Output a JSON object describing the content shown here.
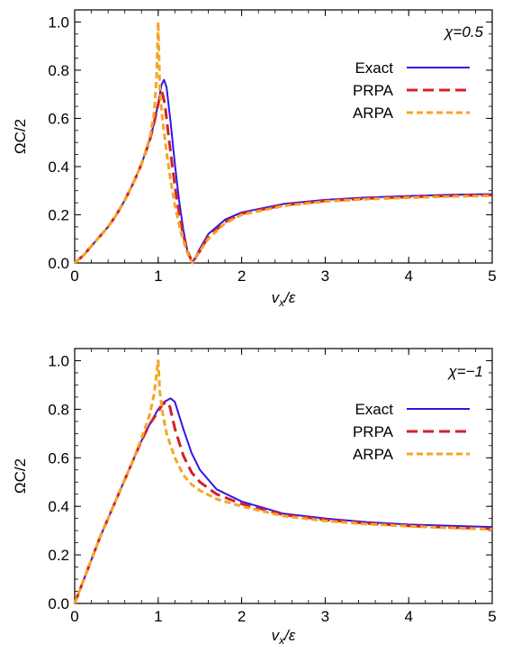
{
  "chart_data": [
    {
      "type": "line",
      "panel": "top",
      "annotation": "χ=0.5",
      "xlabel": "vx/ε",
      "xlabel_main": "v",
      "xlabel_sub": "x",
      "xlabel_tail": "/ε",
      "ylabel": "ΩC/2",
      "xlim": [
        0,
        5
      ],
      "ylim": [
        0,
        1.05
      ],
      "xticks": [
        "0",
        "1",
        "2",
        "3",
        "4",
        "5"
      ],
      "yticks": [
        "0.0",
        "0.2",
        "0.4",
        "0.6",
        "0.8",
        "1.0"
      ],
      "grid": false,
      "legend_position": "top-right",
      "series": [
        {
          "name": "Exact",
          "color": "#2d18e8",
          "style": "solid",
          "points": [
            [
              0,
              0
            ],
            [
              0.1,
              0.03
            ],
            [
              0.2,
              0.07
            ],
            [
              0.3,
              0.11
            ],
            [
              0.4,
              0.15
            ],
            [
              0.5,
              0.2
            ],
            [
              0.6,
              0.26
            ],
            [
              0.7,
              0.33
            ],
            [
              0.8,
              0.41
            ],
            [
              0.9,
              0.51
            ],
            [
              0.95,
              0.58
            ],
            [
              1.0,
              0.66
            ],
            [
              1.04,
              0.74
            ],
            [
              1.07,
              0.76
            ],
            [
              1.1,
              0.73
            ],
            [
              1.15,
              0.58
            ],
            [
              1.2,
              0.41
            ],
            [
              1.25,
              0.26
            ],
            [
              1.3,
              0.14
            ],
            [
              1.35,
              0.05
            ],
            [
              1.41,
              0.0
            ],
            [
              1.5,
              0.06
            ],
            [
              1.6,
              0.12
            ],
            [
              1.8,
              0.18
            ],
            [
              2.0,
              0.21
            ],
            [
              2.5,
              0.245
            ],
            [
              3.0,
              0.262
            ],
            [
              3.5,
              0.272
            ],
            [
              4.0,
              0.278
            ],
            [
              4.5,
              0.283
            ],
            [
              5.0,
              0.286
            ]
          ]
        },
        {
          "name": "PRPA",
          "color": "#d4202c",
          "style": "dashed",
          "points": [
            [
              0,
              0
            ],
            [
              0.1,
              0.03
            ],
            [
              0.2,
              0.07
            ],
            [
              0.3,
              0.11
            ],
            [
              0.4,
              0.15
            ],
            [
              0.5,
              0.2
            ],
            [
              0.6,
              0.26
            ],
            [
              0.7,
              0.33
            ],
            [
              0.8,
              0.41
            ],
            [
              0.9,
              0.51
            ],
            [
              0.95,
              0.58
            ],
            [
              1.0,
              0.66
            ],
            [
              1.03,
              0.7
            ],
            [
              1.05,
              0.705
            ],
            [
              1.08,
              0.66
            ],
            [
              1.12,
              0.54
            ],
            [
              1.17,
              0.4
            ],
            [
              1.22,
              0.27
            ],
            [
              1.28,
              0.15
            ],
            [
              1.34,
              0.06
            ],
            [
              1.41,
              0.0
            ],
            [
              1.5,
              0.05
            ],
            [
              1.6,
              0.11
            ],
            [
              1.8,
              0.17
            ],
            [
              2.0,
              0.205
            ],
            [
              2.5,
              0.24
            ],
            [
              3.0,
              0.258
            ],
            [
              3.5,
              0.268
            ],
            [
              4.0,
              0.274
            ],
            [
              4.5,
              0.279
            ],
            [
              5.0,
              0.282
            ]
          ]
        },
        {
          "name": "ARPA",
          "color": "#f5a623",
          "style": "dashed",
          "points": [
            [
              0,
              0
            ],
            [
              0.1,
              0.03
            ],
            [
              0.2,
              0.07
            ],
            [
              0.3,
              0.11
            ],
            [
              0.4,
              0.15
            ],
            [
              0.5,
              0.2
            ],
            [
              0.6,
              0.26
            ],
            [
              0.7,
              0.33
            ],
            [
              0.8,
              0.41
            ],
            [
              0.9,
              0.52
            ],
            [
              0.95,
              0.62
            ],
            [
              0.98,
              0.76
            ],
            [
              1.0,
              1.0
            ],
            [
              1.02,
              0.72
            ],
            [
              1.05,
              0.6
            ],
            [
              1.1,
              0.46
            ],
            [
              1.15,
              0.34
            ],
            [
              1.2,
              0.24
            ],
            [
              1.27,
              0.13
            ],
            [
              1.34,
              0.05
            ],
            [
              1.41,
              0.0
            ],
            [
              1.5,
              0.05
            ],
            [
              1.6,
              0.1
            ],
            [
              1.8,
              0.165
            ],
            [
              2.0,
              0.2
            ],
            [
              2.5,
              0.237
            ],
            [
              3.0,
              0.255
            ],
            [
              3.5,
              0.265
            ],
            [
              4.0,
              0.271
            ],
            [
              4.5,
              0.276
            ],
            [
              5.0,
              0.279
            ]
          ]
        }
      ]
    },
    {
      "type": "line",
      "panel": "bottom",
      "annotation": "χ=−1",
      "xlabel": "vx/ε",
      "xlabel_main": "v",
      "xlabel_sub": "x",
      "xlabel_tail": "/ε",
      "ylabel": "ΩC/2",
      "xlim": [
        0,
        5
      ],
      "ylim": [
        0,
        1.05
      ],
      "xticks": [
        "0",
        "1",
        "2",
        "3",
        "4",
        "5"
      ],
      "yticks": [
        "0.0",
        "0.2",
        "0.4",
        "0.6",
        "0.8",
        "1.0"
      ],
      "grid": false,
      "legend_position": "top-right",
      "series": [
        {
          "name": "Exact",
          "color": "#2d18e8",
          "style": "solid",
          "points": [
            [
              0,
              0
            ],
            [
              0.1,
              0.09
            ],
            [
              0.2,
              0.18
            ],
            [
              0.3,
              0.27
            ],
            [
              0.4,
              0.35
            ],
            [
              0.5,
              0.43
            ],
            [
              0.6,
              0.51
            ],
            [
              0.7,
              0.59
            ],
            [
              0.8,
              0.67
            ],
            [
              0.9,
              0.74
            ],
            [
              1.0,
              0.8
            ],
            [
              1.07,
              0.83
            ],
            [
              1.15,
              0.845
            ],
            [
              1.2,
              0.83
            ],
            [
              1.3,
              0.72
            ],
            [
              1.4,
              0.62
            ],
            [
              1.5,
              0.55
            ],
            [
              1.7,
              0.47
            ],
            [
              2.0,
              0.42
            ],
            [
              2.5,
              0.37
            ],
            [
              3.0,
              0.35
            ],
            [
              3.5,
              0.335
            ],
            [
              4.0,
              0.325
            ],
            [
              4.5,
              0.32
            ],
            [
              5.0,
              0.315
            ]
          ]
        },
        {
          "name": "PRPA",
          "color": "#d4202c",
          "style": "dashed",
          "points": [
            [
              0,
              0
            ],
            [
              0.1,
              0.09
            ],
            [
              0.2,
              0.18
            ],
            [
              0.3,
              0.27
            ],
            [
              0.4,
              0.35
            ],
            [
              0.5,
              0.43
            ],
            [
              0.6,
              0.51
            ],
            [
              0.7,
              0.59
            ],
            [
              0.8,
              0.67
            ],
            [
              0.9,
              0.74
            ],
            [
              1.0,
              0.79
            ],
            [
              1.05,
              0.82
            ],
            [
              1.1,
              0.83
            ],
            [
              1.14,
              0.81
            ],
            [
              1.2,
              0.72
            ],
            [
              1.3,
              0.61
            ],
            [
              1.4,
              0.54
            ],
            [
              1.5,
              0.5
            ],
            [
              1.7,
              0.45
            ],
            [
              2.0,
              0.41
            ],
            [
              2.5,
              0.365
            ],
            [
              3.0,
              0.345
            ],
            [
              3.5,
              0.33
            ],
            [
              4.0,
              0.32
            ],
            [
              4.5,
              0.313
            ],
            [
              5.0,
              0.308
            ]
          ]
        },
        {
          "name": "ARPA",
          "color": "#f5a623",
          "style": "dashed",
          "points": [
            [
              0,
              0
            ],
            [
              0.1,
              0.09
            ],
            [
              0.2,
              0.18
            ],
            [
              0.3,
              0.27
            ],
            [
              0.4,
              0.35
            ],
            [
              0.5,
              0.43
            ],
            [
              0.6,
              0.51
            ],
            [
              0.7,
              0.59
            ],
            [
              0.8,
              0.68
            ],
            [
              0.9,
              0.78
            ],
            [
              0.95,
              0.86
            ],
            [
              1.0,
              1.0
            ],
            [
              1.02,
              0.87
            ],
            [
              1.05,
              0.79
            ],
            [
              1.1,
              0.7
            ],
            [
              1.2,
              0.6
            ],
            [
              1.3,
              0.53
            ],
            [
              1.4,
              0.49
            ],
            [
              1.5,
              0.465
            ],
            [
              1.7,
              0.43
            ],
            [
              2.0,
              0.4
            ],
            [
              2.5,
              0.36
            ],
            [
              3.0,
              0.34
            ],
            [
              3.5,
              0.327
            ],
            [
              4.0,
              0.318
            ],
            [
              4.5,
              0.311
            ],
            [
              5.0,
              0.305
            ]
          ]
        }
      ]
    }
  ]
}
